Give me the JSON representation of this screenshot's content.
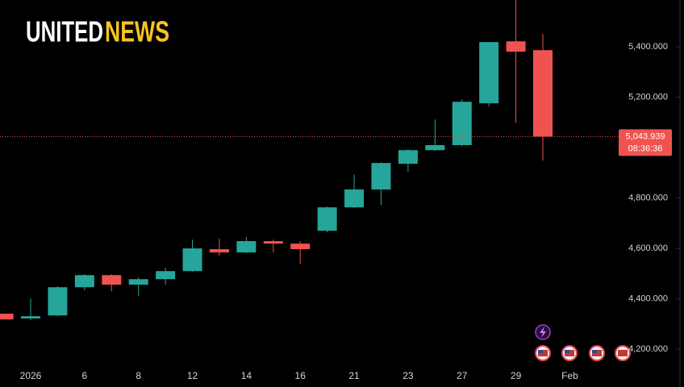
{
  "logo": {
    "first": "UNITED",
    "second": "NEWS"
  },
  "chart_data": {
    "type": "candlestick",
    "categories": [
      null,
      "2026",
      null,
      "6",
      null,
      "8",
      null,
      "12",
      null,
      "14",
      null,
      "16",
      null,
      "21",
      null,
      "23",
      null,
      "27",
      null,
      "29",
      null,
      "Feb"
    ],
    "open": [
      4341,
      4322,
      4334,
      4446,
      4494,
      4456,
      4478,
      4510,
      4597,
      4584,
      4629,
      4619,
      4670,
      4763,
      4834,
      4936,
      4990,
      5010,
      5176,
      5422,
      5387,
      null
    ],
    "high": [
      4341,
      4402,
      4450,
      4498,
      4498,
      4485,
      4523,
      4635,
      4638,
      4645,
      4635,
      4629,
      4766,
      4894,
      4942,
      4994,
      5112,
      5192,
      5419,
      5586,
      5451,
      null
    ],
    "low": [
      4318,
      4315,
      4331,
      4434,
      4430,
      4411,
      4456,
      4507,
      4571,
      4581,
      4584,
      4539,
      4664,
      4760,
      4773,
      4904,
      4987,
      5006,
      5163,
      5099,
      4949,
      null
    ],
    "close": [
      4318,
      4331,
      4446,
      4494,
      4456,
      4478,
      4510,
      4600,
      4584,
      4629,
      4619,
      4597,
      4763,
      4834,
      4939,
      4990,
      5010,
      5182,
      5419,
      5381,
      5043.939,
      null
    ],
    "up_color": "#26a69a",
    "down_color": "#ef5350",
    "ylim": [
      4130,
      5586
    ],
    "yticks": [
      {
        "value": 4200,
        "label": "4,200.000"
      },
      {
        "value": 4400,
        "label": "4,400.000"
      },
      {
        "value": 4600,
        "label": "4,600.000"
      },
      {
        "value": 4800,
        "label": "4,800.000"
      },
      {
        "value": 5200,
        "label": "5,200.000"
      },
      {
        "value": 5400,
        "label": "5,400.000"
      }
    ],
    "last_price": {
      "value": 5043.939,
      "label": "5,043.939"
    },
    "countdown": "08:36:36"
  }
}
